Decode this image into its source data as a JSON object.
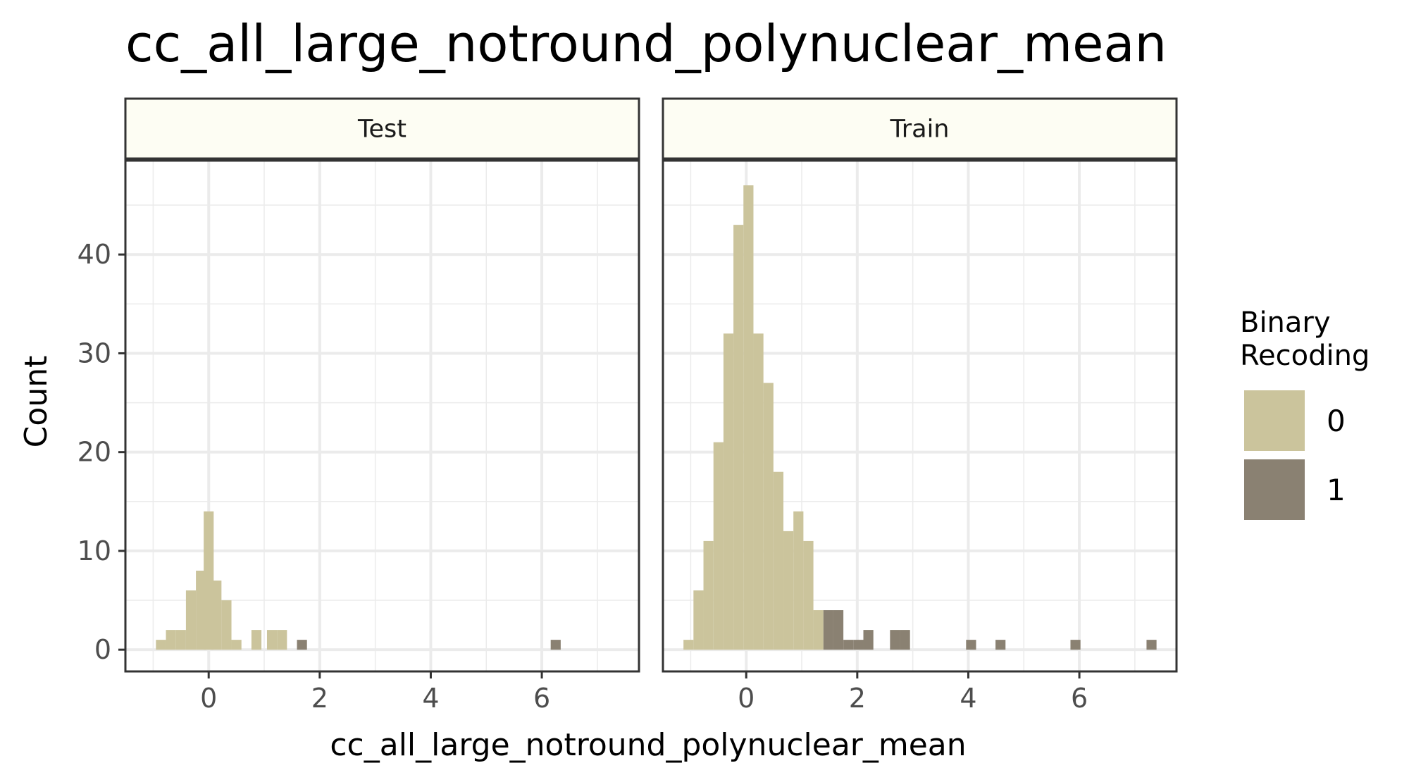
{
  "chart_data": {
    "type": "bar",
    "title": "cc_all_large_notround_polynuclear_mean",
    "xlabel": "cc_all_large_notround_polynuclear_mean",
    "ylabel": "Count",
    "xlim": [
      -1.5,
      7.75
    ],
    "ylim": [
      -2.2,
      49.5
    ],
    "x_ticks": [
      0,
      2,
      4,
      6
    ],
    "y_ticks": [
      0,
      10,
      20,
      30,
      40
    ],
    "grid": true,
    "bin_width": 0.18,
    "legend": {
      "title": [
        "Binary",
        "Recoding"
      ],
      "position": "right",
      "entries": [
        {
          "label": "0",
          "color": "#cbc49c"
        },
        {
          "label": "1",
          "color": "#8a8172"
        }
      ]
    },
    "panels": [
      {
        "name": "Test",
        "series": [
          {
            "name": "0",
            "color": "#cbc49c",
            "x": [
              -0.86,
              -0.68,
              -0.5,
              -0.32,
              -0.14,
              0.0,
              0.14,
              0.32,
              0.5,
              0.86,
              1.14,
              1.32
            ],
            "values": [
              1,
              2,
              2,
              6,
              8,
              14,
              7,
              5,
              1,
              2,
              2,
              2
            ]
          },
          {
            "name": "1",
            "color": "#8a8172",
            "x": [
              1.68,
              6.25
            ],
            "values": [
              1,
              1
            ]
          }
        ]
      },
      {
        "name": "Train",
        "series": [
          {
            "name": "0",
            "color": "#cbc49c",
            "x": [
              -1.04,
              -0.86,
              -0.68,
              -0.5,
              -0.32,
              -0.14,
              0.04,
              0.22,
              0.4,
              0.58,
              0.76,
              0.94,
              1.12,
              1.3
            ],
            "values": [
              1,
              6,
              11,
              21,
              32,
              43,
              47,
              32,
              27,
              18,
              12,
              14,
              11,
              4
            ]
          },
          {
            "name": "1",
            "color": "#8a8172",
            "x": [
              1.48,
              1.66,
              1.84,
              2.02,
              2.2,
              2.68,
              2.86,
              4.05,
              4.58,
              5.93,
              7.3
            ],
            "values": [
              4,
              4,
              1,
              1,
              2,
              2,
              2,
              1,
              1,
              1,
              1
            ]
          }
        ]
      }
    ]
  }
}
